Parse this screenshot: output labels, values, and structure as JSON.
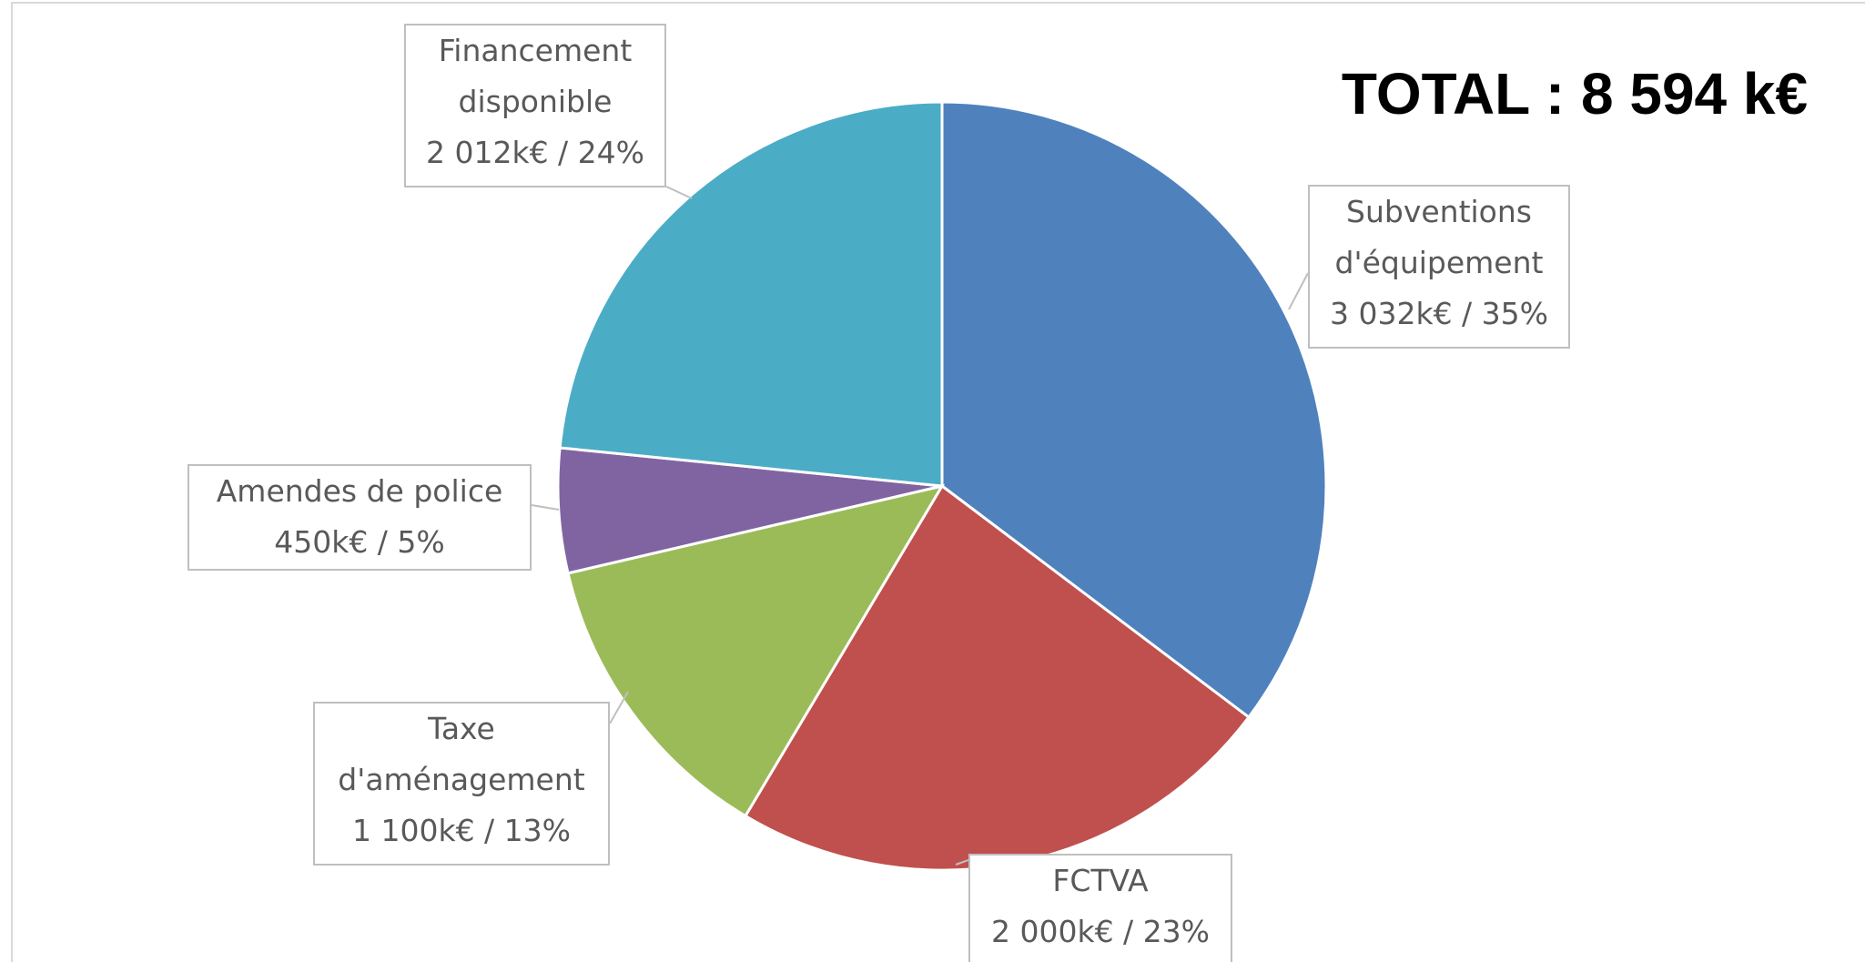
{
  "chart_data": {
    "type": "pie",
    "title": "TOTAL : 8 594 k€",
    "categories": [
      "Subventions d'équipement",
      "FCTVA",
      "Taxe d'aménagement",
      "Amendes de police",
      "Financement disponible"
    ],
    "values": [
      3032,
      2000,
      1100,
      450,
      2012
    ],
    "value_labels": [
      "3 032k€ / 35%",
      "2 000k€ / 23%",
      "1 100k€ / 13%",
      "450k€ / 5%",
      "2 012k€ / 24%"
    ],
    "colors": [
      "#4f81bd",
      "#c0504d",
      "#9bbb59",
      "#8064a2",
      "#4bacc6"
    ]
  }
}
